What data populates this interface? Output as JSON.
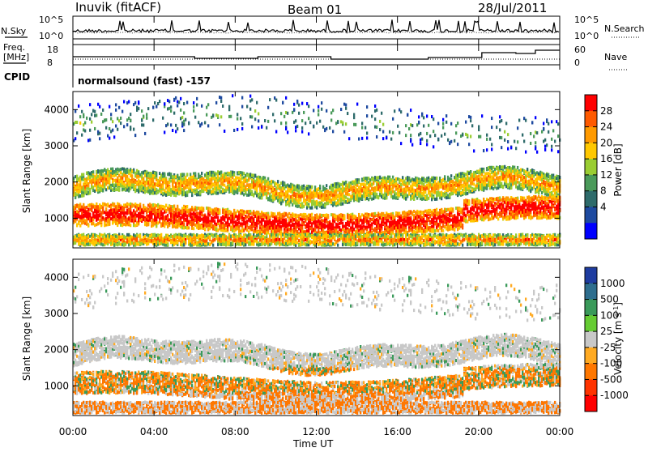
{
  "header": {
    "station": "Inuvik",
    "mode": "(fitACF)",
    "beam": "Beam 01",
    "date": "28/Jul/2011"
  },
  "noise_panel": {
    "left_label": "N.Sky",
    "right_label": "N.Search",
    "left_ticks": [
      "10^5",
      "10^0"
    ],
    "right_ticks": [
      "10^5",
      "10^0"
    ]
  },
  "freq_panel": {
    "left_label_1": "Freq.",
    "left_label_2": "[MHz]",
    "right_label": "Nave",
    "left_ticks": [
      "18",
      "8"
    ],
    "right_ticks": [
      "60",
      "0"
    ]
  },
  "cpid": {
    "label": "CPID",
    "text": "normalsound (fast) -157"
  },
  "chart_data": [
    {
      "type": "heatmap",
      "name": "power",
      "ylabel": "Slant Range [km]",
      "xlabel": "",
      "ylim": [
        180,
        4500
      ],
      "yticks": [
        "4000",
        "3000",
        "2000",
        "1000"
      ],
      "colorbar_label": "Power [dB]",
      "colorbar_ticks": [
        "28",
        "24",
        "20",
        "16",
        "12",
        "8",
        "4"
      ],
      "colorbar_colors": [
        "#ff0000",
        "#ff5a00",
        "#ff9a00",
        "#ffc800",
        "#9acd32",
        "#4a9a5a",
        "#2e6b6b",
        "#1e4aa0",
        "#0000ff"
      ],
      "bands": [
        {
          "range_km": [
            1500,
            2300
          ],
          "description_level": "mid"
        },
        {
          "range_km": [
            600,
            1400
          ],
          "description_level": "high"
        },
        {
          "range_km": [
            3000,
            4100
          ],
          "description_level": "low"
        }
      ]
    },
    {
      "type": "heatmap",
      "name": "velocity",
      "ylabel": "Slant Range [km]",
      "xlabel": "Time UT",
      "ylim": [
        180,
        4500
      ],
      "yticks": [
        "4000",
        "3000",
        "2000",
        "1000"
      ],
      "xticks": [
        "00:00",
        "04:00",
        "08:00",
        "12:00",
        "16:00",
        "20:00",
        "00:00"
      ],
      "colorbar_label": "Velocity [m s-1]",
      "colorbar_ticks": [
        "1000",
        "500",
        "100",
        "25",
        "-25",
        "-100",
        "-500",
        "-1000"
      ],
      "colorbar_colors": [
        "#1e3ca0",
        "#2e6e8e",
        "#3a9a5a",
        "#66cc33",
        "#c8c8c8",
        "#ffaa22",
        "#ff7700",
        "#ff3300",
        "#ff0000"
      ]
    }
  ]
}
